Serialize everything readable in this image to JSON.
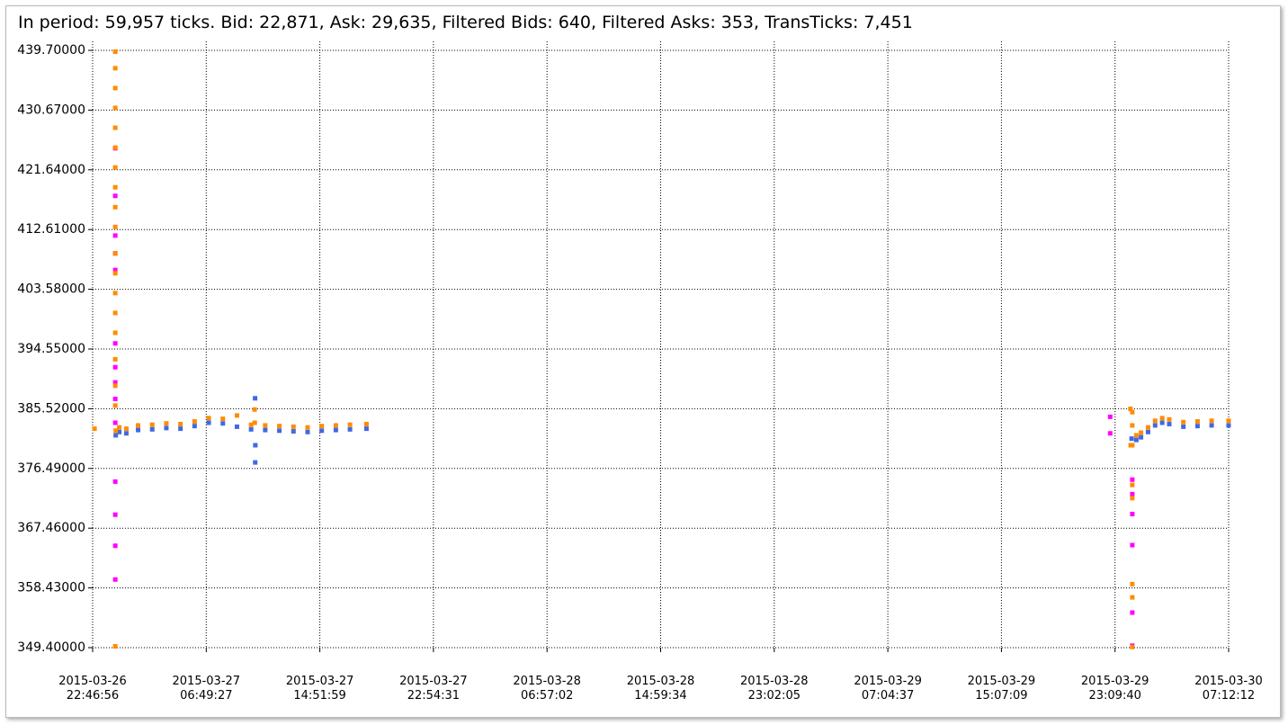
{
  "chart_data": {
    "type": "scatter",
    "title": "In period: 59,957 ticks. Bid: 22,871, Ask: 29,635, Filtered Bids: 640, Filtered Asks: 353, TransTicks: 7,451",
    "xlim": [
      "2015-03-26 22:46:56",
      "2015-03-30 07:12:12"
    ],
    "xticks": [
      "2015-03-26 22:46:56",
      "2015-03-27 06:49:27",
      "2015-03-27 14:51:59",
      "2015-03-27 22:54:31",
      "2015-03-28 06:57:02",
      "2015-03-28 14:59:34",
      "2015-03-28 23:02:05",
      "2015-03-29 07:04:37",
      "2015-03-29 15:07:09",
      "2015-03-29 23:09:40",
      "2015-03-30 07:12:12"
    ],
    "ylim": [
      349.4,
      439.7
    ],
    "yticks": [
      {
        "value": 349.4,
        "label": "349.40000"
      },
      {
        "value": 358.43,
        "label": "358.43000"
      },
      {
        "value": 367.46,
        "label": "367.46000"
      },
      {
        "value": 376.49,
        "label": "376.49000"
      },
      {
        "value": 385.52,
        "label": "385.52000"
      },
      {
        "value": 394.55,
        "label": "394.55000"
      },
      {
        "value": 403.58,
        "label": "403.58000"
      },
      {
        "value": 412.61,
        "label": "412.61000"
      },
      {
        "value": 421.64,
        "label": "421.64000"
      },
      {
        "value": 430.67,
        "label": "430.67000"
      },
      {
        "value": 439.7,
        "label": "439.70000"
      }
    ],
    "grid": true,
    "series": [
      {
        "color": "#ff00ff",
        "x": [
          "2015-03-27 00:23:00",
          "2015-03-27 00:23:00",
          "2015-03-27 00:23:00",
          "2015-03-27 00:23:00",
          "2015-03-27 00:23:00",
          "2015-03-27 00:23:00",
          "2015-03-27 00:23:00",
          "2015-03-27 00:23:00",
          "2015-03-27 00:23:00",
          "2015-03-27 00:23:00",
          "2015-03-27 00:23:00",
          "2015-03-27 00:23:00",
          "2015-03-27 00:23:00",
          "2015-03-27 00:23:00",
          "2015-03-29 22:49:00",
          "2015-03-29 22:49:00",
          "2015-03-30 00:23:00",
          "2015-03-30 00:23:00",
          "2015-03-30 00:23:00",
          "2015-03-30 00:23:00",
          "2015-03-30 00:23:00",
          "2015-03-30 00:23:00"
        ],
        "values": [
          424.9,
          417.7,
          411.7,
          409.0,
          406.5,
          395.4,
          391.8,
          389.5,
          387.0,
          383.4,
          374.5,
          369.5,
          364.8,
          359.7,
          384.3,
          381.8,
          374.8,
          372.6,
          369.6,
          364.9,
          354.7,
          349.7
        ]
      },
      {
        "color": "#4169e1",
        "x": [
          "2015-03-27 00:25:00",
          "2015-03-27 00:40:00",
          "2015-03-27 01:10:00",
          "2015-03-27 02:00:00",
          "2015-03-27 03:00:00",
          "2015-03-27 04:00:00",
          "2015-03-27 05:00:00",
          "2015-03-27 06:00:00",
          "2015-03-27 07:00:00",
          "2015-03-27 08:00:00",
          "2015-03-27 09:00:00",
          "2015-03-27 10:00:00",
          "2015-03-27 10:17:00",
          "2015-03-27 10:17:30",
          "2015-03-27 10:18:00",
          "2015-03-27 11:00:00",
          "2015-03-27 12:00:00",
          "2015-03-27 13:00:00",
          "2015-03-27 14:00:00",
          "2015-03-27 15:00:00",
          "2015-03-27 16:00:00",
          "2015-03-27 17:00:00",
          "2015-03-27 18:10:00",
          "2015-03-30 00:20:00",
          "2015-03-30 00:40:00",
          "2015-03-30 01:00:00",
          "2015-03-30 01:30:00",
          "2015-03-30 02:00:00",
          "2015-03-30 02:30:00",
          "2015-03-30 03:00:00",
          "2015-03-30 04:00:00",
          "2015-03-30 05:00:00",
          "2015-03-30 06:00:00",
          "2015-03-30 07:12:00"
        ],
        "values": [
          381.5,
          382.0,
          381.8,
          382.3,
          382.4,
          382.6,
          382.5,
          382.9,
          383.4,
          383.3,
          382.8,
          382.4,
          387.1,
          377.4,
          380.0,
          382.3,
          382.2,
          382.1,
          382.0,
          382.2,
          382.3,
          382.4,
          382.5,
          381.0,
          380.8,
          381.2,
          382.0,
          383.0,
          383.4,
          383.2,
          382.8,
          382.9,
          383.0,
          383.0
        ]
      },
      {
        "color": "#ff8c00",
        "x": [
          "2015-03-26 22:55:00",
          "2015-03-27 00:25:00",
          "2015-03-27 00:40:00",
          "2015-03-27 01:10:00",
          "2015-03-27 02:00:00",
          "2015-03-27 03:00:00",
          "2015-03-27 04:00:00",
          "2015-03-27 05:00:00",
          "2015-03-27 06:00:00",
          "2015-03-27 07:00:00",
          "2015-03-27 08:00:00",
          "2015-03-27 09:00:00",
          "2015-03-27 10:00:00",
          "2015-03-27 10:15:00",
          "2015-03-27 10:15:30",
          "2015-03-27 11:00:00",
          "2015-03-27 12:00:00",
          "2015-03-27 13:00:00",
          "2015-03-27 14:00:00",
          "2015-03-27 15:00:00",
          "2015-03-27 16:00:00",
          "2015-03-27 17:00:00",
          "2015-03-27 18:10:00",
          "2015-03-30 00:15:00",
          "2015-03-30 00:16:00",
          "2015-03-30 00:40:00",
          "2015-03-30 01:00:00",
          "2015-03-30 01:30:00",
          "2015-03-30 02:00:00",
          "2015-03-30 02:30:00",
          "2015-03-30 03:00:00",
          "2015-03-30 04:00:00",
          "2015-03-30 05:00:00",
          "2015-03-30 06:00:00",
          "2015-03-30 07:12:00"
        ],
        "values": [
          382.5,
          382.2,
          382.7,
          382.5,
          383.0,
          383.1,
          383.3,
          383.2,
          383.6,
          384.1,
          384.0,
          384.5,
          383.1,
          385.4,
          383.4,
          383.0,
          382.9,
          382.8,
          382.7,
          382.9,
          383.0,
          383.1,
          383.2,
          385.5,
          380.0,
          381.5,
          381.9,
          382.7,
          383.7,
          384.1,
          383.9,
          383.5,
          383.6,
          383.7,
          383.7
        ]
      },
      {
        "color": "#ff8c00",
        "x": [
          "2015-03-27 00:23:00",
          "2015-03-27 00:23:00",
          "2015-03-27 00:23:00",
          "2015-03-27 00:23:00",
          "2015-03-27 00:23:00",
          "2015-03-27 00:23:00",
          "2015-03-27 00:23:00",
          "2015-03-27 00:23:00",
          "2015-03-27 00:23:00",
          "2015-03-27 00:23:00",
          "2015-03-27 00:23:00",
          "2015-03-27 00:23:00",
          "2015-03-27 00:23:00",
          "2015-03-27 00:23:00",
          "2015-03-27 00:23:00",
          "2015-03-27 00:23:00",
          "2015-03-27 00:23:00",
          "2015-03-27 00:23:00",
          "2015-03-27 00:23:00",
          "2015-03-30 00:23:00",
          "2015-03-30 00:23:00",
          "2015-03-30 00:23:00",
          "2015-03-30 00:23:00",
          "2015-03-30 00:23:00",
          "2015-03-30 00:23:00",
          "2015-03-30 00:23:00",
          "2015-03-30 00:23:00"
        ],
        "values": [
          439.5,
          437.0,
          434.0,
          431.0,
          428.0,
          425.0,
          422.0,
          419.0,
          416.0,
          413.0,
          409.0,
          406.0,
          403.0,
          400.0,
          397.0,
          393.0,
          389.0,
          386.0,
          349.6,
          385.0,
          383.0,
          380.0,
          374.0,
          372.0,
          359.0,
          357.0,
          349.5
        ]
      }
    ]
  }
}
